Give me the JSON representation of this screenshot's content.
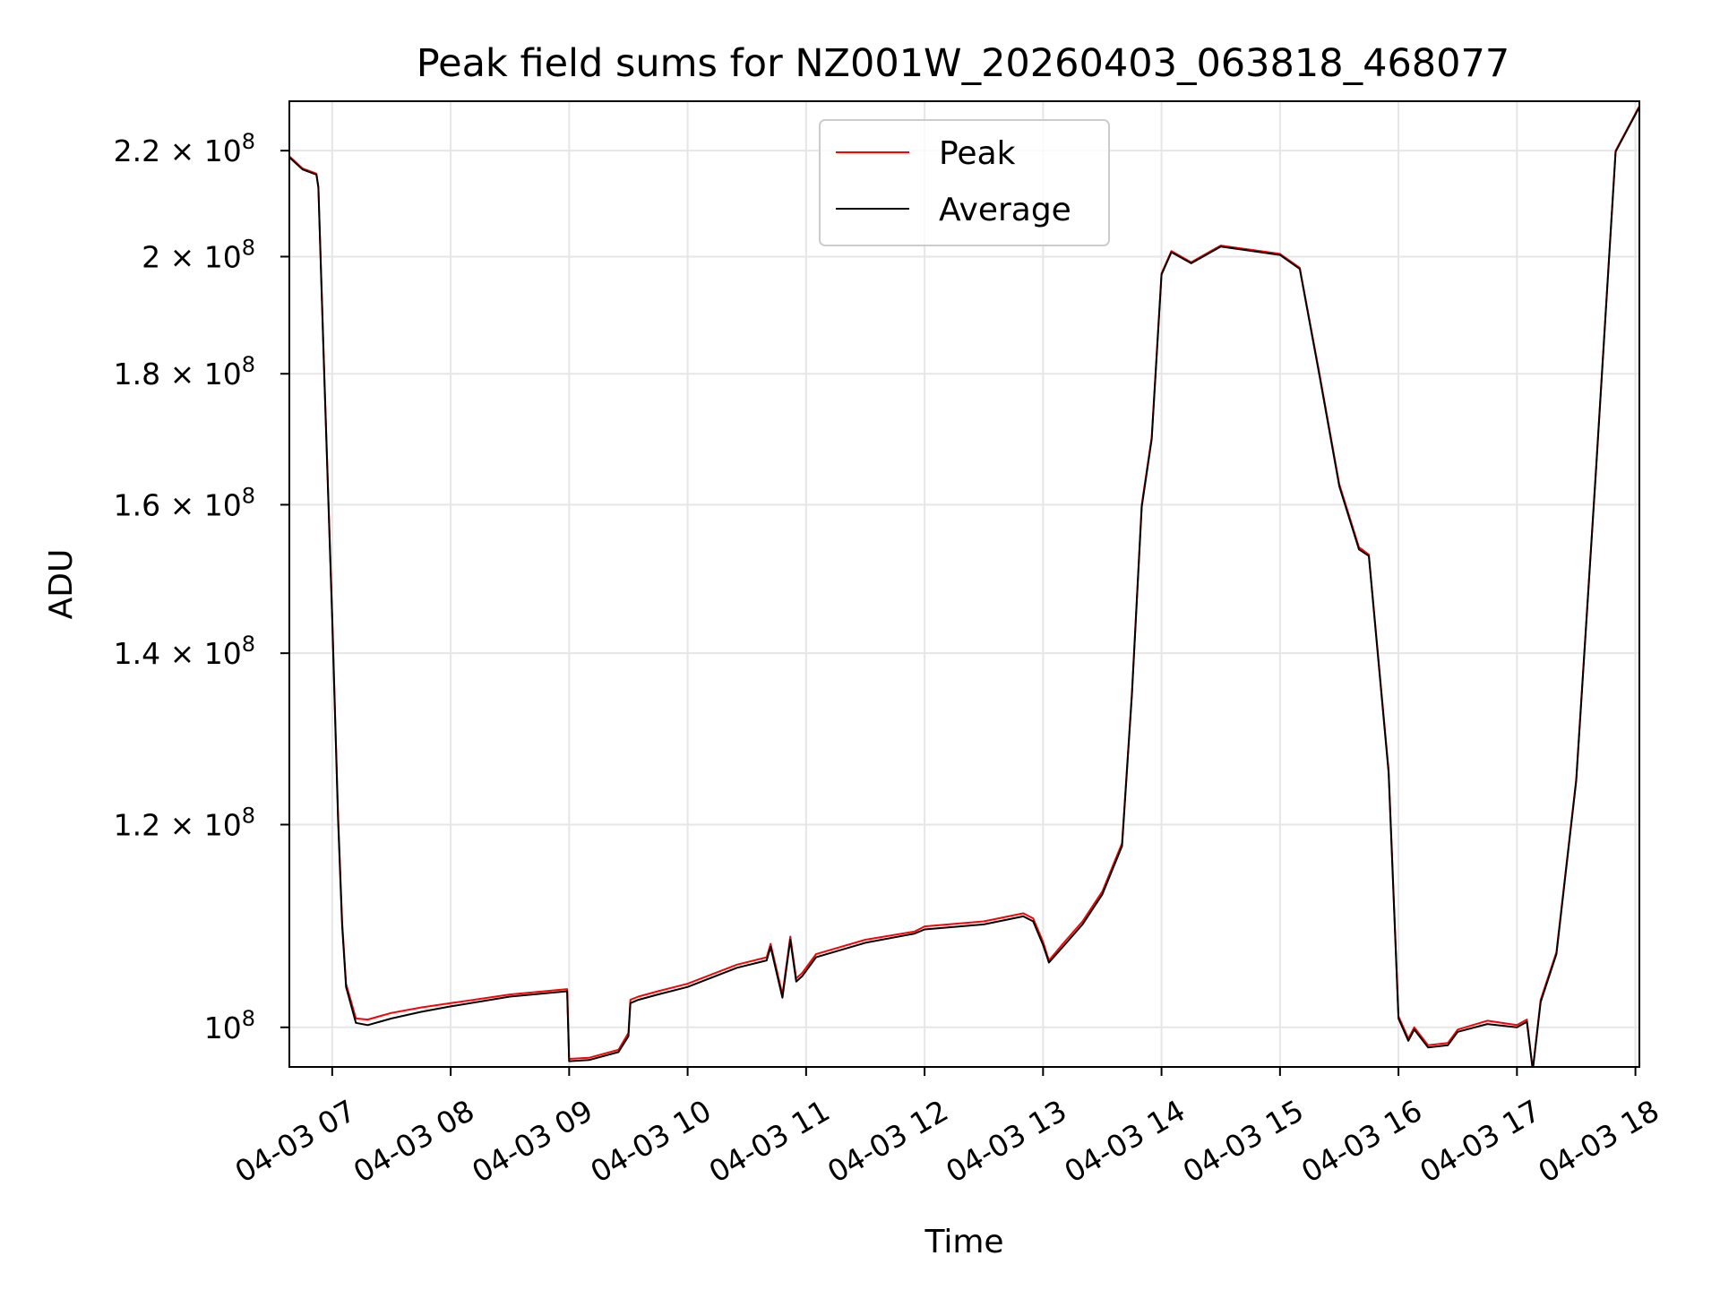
{
  "chart_data": {
    "type": "line",
    "title": "Peak field sums for NZ001W_20260403_063818_468077",
    "xlabel": "Time",
    "ylabel": "ADU",
    "y_scale": "log",
    "xlim": [
      "2026-04-03T06:38:18",
      "2026-04-03T18:02"
    ],
    "ylim": [
      96500000,
      230000000
    ],
    "grid": true,
    "legend_position": "top-center",
    "x_ticks": [
      {
        "t": "2026-04-03T07:00",
        "label": "04-03 07"
      },
      {
        "t": "2026-04-03T08:00",
        "label": "04-03 08"
      },
      {
        "t": "2026-04-03T09:00",
        "label": "04-03 09"
      },
      {
        "t": "2026-04-03T10:00",
        "label": "04-03 10"
      },
      {
        "t": "2026-04-03T11:00",
        "label": "04-03 11"
      },
      {
        "t": "2026-04-03T12:00",
        "label": "04-03 12"
      },
      {
        "t": "2026-04-03T13:00",
        "label": "04-03 13"
      },
      {
        "t": "2026-04-03T14:00",
        "label": "04-03 14"
      },
      {
        "t": "2026-04-03T15:00",
        "label": "04-03 15"
      },
      {
        "t": "2026-04-03T16:00",
        "label": "04-03 16"
      },
      {
        "t": "2026-04-03T17:00",
        "label": "04-03 17"
      },
      {
        "t": "2026-04-03T18:00",
        "label": "04-03 18"
      }
    ],
    "y_ticks": [
      {
        "value": 100000000,
        "mant": "10",
        "exp": "8"
      },
      {
        "value": 120000000,
        "mant": "1.2 × 10",
        "exp": "8"
      },
      {
        "value": 140000000,
        "mant": "1.4 × 10",
        "exp": "8"
      },
      {
        "value": 160000000,
        "mant": "1.6 × 10",
        "exp": "8"
      },
      {
        "value": 180000000,
        "mant": "1.8 × 10",
        "exp": "8"
      },
      {
        "value": 200000000,
        "mant": "2 × 10",
        "exp": "8"
      },
      {
        "value": 220000000,
        "mant": "2.2 × 10",
        "exp": "8"
      }
    ],
    "series": [
      {
        "name": "Peak",
        "color": "#ff0000",
        "x": [
          "2026-04-03T06:38",
          "2026-04-03T06:45",
          "2026-04-03T06:52",
          "2026-04-03T06:53",
          "2026-04-03T06:56",
          "2026-04-03T07:00",
          "2026-04-03T07:03",
          "2026-04-03T07:05",
          "2026-04-03T07:07",
          "2026-04-03T07:12",
          "2026-04-03T07:18",
          "2026-04-03T07:24",
          "2026-04-03T07:30",
          "2026-04-03T07:45",
          "2026-04-03T08:00",
          "2026-04-03T08:30",
          "2026-04-03T08:59",
          "2026-04-03T09:00",
          "2026-04-03T09:10",
          "2026-04-03T09:25",
          "2026-04-03T09:30",
          "2026-04-03T09:31",
          "2026-04-03T09:35",
          "2026-04-03T09:45",
          "2026-04-03T10:00",
          "2026-04-03T10:25",
          "2026-04-03T10:40",
          "2026-04-03T10:42",
          "2026-04-03T10:48",
          "2026-04-03T10:52",
          "2026-04-03T10:55",
          "2026-04-03T10:58",
          "2026-04-03T11:05",
          "2026-04-03T11:30",
          "2026-04-03T11:55",
          "2026-04-03T12:00",
          "2026-04-03T12:30",
          "2026-04-03T12:50",
          "2026-04-03T12:55",
          "2026-04-03T13:00",
          "2026-04-03T13:03",
          "2026-04-03T13:10",
          "2026-04-03T13:20",
          "2026-04-03T13:30",
          "2026-04-03T13:40",
          "2026-04-03T13:45",
          "2026-04-03T13:50",
          "2026-04-03T13:55",
          "2026-04-03T14:00",
          "2026-04-03T14:05",
          "2026-04-03T14:15",
          "2026-04-03T14:25",
          "2026-04-03T14:30",
          "2026-04-03T14:40",
          "2026-04-03T15:00",
          "2026-04-03T15:10",
          "2026-04-03T15:20",
          "2026-04-03T15:30",
          "2026-04-03T15:40",
          "2026-04-03T15:45",
          "2026-04-03T15:55",
          "2026-04-03T16:00",
          "2026-04-03T16:05",
          "2026-04-03T16:08",
          "2026-04-03T16:15",
          "2026-04-03T16:25",
          "2026-04-03T16:30",
          "2026-04-03T16:45",
          "2026-04-03T17:00",
          "2026-04-03T17:05",
          "2026-04-03T17:08",
          "2026-04-03T17:12",
          "2026-04-03T17:20",
          "2026-04-03T17:30",
          "2026-04-03T17:40",
          "2026-04-03T17:50",
          "2026-04-03T18:02"
        ],
        "y": [
          219000000,
          216500000,
          215500000,
          213000000,
          180000000,
          145000000,
          121000000,
          110000000,
          104000000,
          100800000,
          100700000,
          101000000,
          101300000,
          101800000,
          102200000,
          103000000,
          103500000,
          97200000,
          97300000,
          98000000,
          99500000,
          102500000,
          102800000,
          103300000,
          104000000,
          105800000,
          106500000,
          107800000,
          103000000,
          108500000,
          104500000,
          105000000,
          106800000,
          108200000,
          109000000,
          109500000,
          110000000,
          110800000,
          110300000,
          108000000,
          106200000,
          107800000,
          110000000,
          113000000,
          118000000,
          135000000,
          160000000,
          170000000,
          197000000,
          201000000,
          199000000,
          201000000,
          202000000,
          201500000,
          200500000,
          198000000,
          180000000,
          163000000,
          154000000,
          153000000,
          126000000,
          101000000,
          99000000,
          100000000,
          98400000,
          98600000,
          99800000,
          100600000,
          100200000,
          100700000,
          96300000,
          102500000,
          107000000,
          125000000,
          165000000,
          220000000,
          229000000
        ]
      },
      {
        "name": "Average",
        "color": "#000000",
        "x": [
          "2026-04-03T06:38",
          "2026-04-03T06:45",
          "2026-04-03T06:52",
          "2026-04-03T06:53",
          "2026-04-03T06:56",
          "2026-04-03T07:00",
          "2026-04-03T07:03",
          "2026-04-03T07:05",
          "2026-04-03T07:07",
          "2026-04-03T07:12",
          "2026-04-03T07:18",
          "2026-04-03T07:24",
          "2026-04-03T07:30",
          "2026-04-03T07:45",
          "2026-04-03T08:00",
          "2026-04-03T08:30",
          "2026-04-03T08:59",
          "2026-04-03T09:00",
          "2026-04-03T09:10",
          "2026-04-03T09:25",
          "2026-04-03T09:30",
          "2026-04-03T09:31",
          "2026-04-03T09:35",
          "2026-04-03T09:45",
          "2026-04-03T10:00",
          "2026-04-03T10:25",
          "2026-04-03T10:40",
          "2026-04-03T10:42",
          "2026-04-03T10:48",
          "2026-04-03T10:52",
          "2026-04-03T10:55",
          "2026-04-03T10:58",
          "2026-04-03T11:05",
          "2026-04-03T11:30",
          "2026-04-03T11:55",
          "2026-04-03T12:00",
          "2026-04-03T12:30",
          "2026-04-03T12:50",
          "2026-04-03T12:55",
          "2026-04-03T13:00",
          "2026-04-03T13:03",
          "2026-04-03T13:10",
          "2026-04-03T13:20",
          "2026-04-03T13:30",
          "2026-04-03T13:40",
          "2026-04-03T13:45",
          "2026-04-03T13:50",
          "2026-04-03T13:55",
          "2026-04-03T14:00",
          "2026-04-03T14:05",
          "2026-04-03T14:15",
          "2026-04-03T14:25",
          "2026-04-03T14:30",
          "2026-04-03T14:40",
          "2026-04-03T15:00",
          "2026-04-03T15:10",
          "2026-04-03T15:20",
          "2026-04-03T15:30",
          "2026-04-03T15:40",
          "2026-04-03T15:45",
          "2026-04-03T15:55",
          "2026-04-03T16:00",
          "2026-04-03T16:05",
          "2026-04-03T16:08",
          "2026-04-03T16:15",
          "2026-04-03T16:25",
          "2026-04-03T16:30",
          "2026-04-03T16:45",
          "2026-04-03T17:00",
          "2026-04-03T17:05",
          "2026-04-03T17:08",
          "2026-04-03T17:12",
          "2026-04-03T17:20",
          "2026-04-03T17:30",
          "2026-04-03T17:40",
          "2026-04-03T17:50",
          "2026-04-03T18:02"
        ],
        "y": [
          218800000,
          216300000,
          215300000,
          212800000,
          179500000,
          144500000,
          120500000,
          109600000,
          103700000,
          100400000,
          100200000,
          100500000,
          100800000,
          101400000,
          101900000,
          102800000,
          103300000,
          97000000,
          97100000,
          97800000,
          99200000,
          102200000,
          102500000,
          103000000,
          103700000,
          105500000,
          106200000,
          107500000,
          102700000,
          108200000,
          104200000,
          104700000,
          106500000,
          107900000,
          108800000,
          109200000,
          109700000,
          110500000,
          110000000,
          107700000,
          106000000,
          107500000,
          109700000,
          112700000,
          117700000,
          134800000,
          159700000,
          169700000,
          196800000,
          200800000,
          198800000,
          200800000,
          201800000,
          201300000,
          200300000,
          197800000,
          179700000,
          162700000,
          153700000,
          152800000,
          125700000,
          100800000,
          98800000,
          99800000,
          98200000,
          98400000,
          99600000,
          100300000,
          100000000,
          100500000,
          96200000,
          102300000,
          106800000,
          124800000,
          164800000,
          219800000,
          228800000
        ]
      }
    ]
  }
}
